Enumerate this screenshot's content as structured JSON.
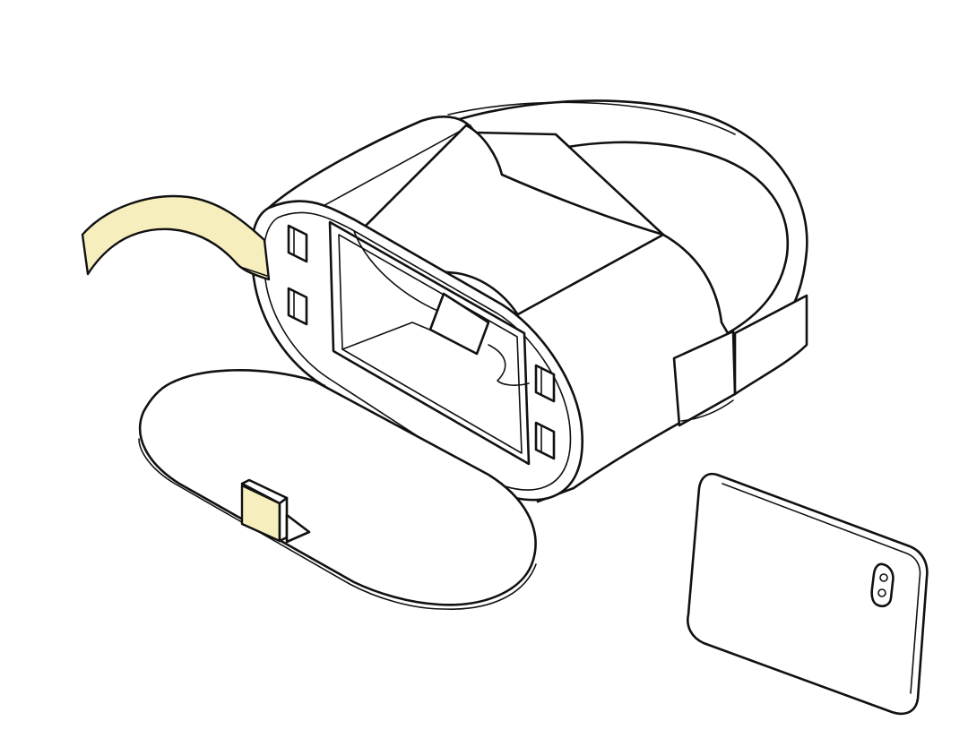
{
  "colors": {
    "background": "#ffffff",
    "outline": "#111111",
    "fill": "#ffffff",
    "tape": "#f6eebc"
  },
  "icons": [
    "vr-headset-icon",
    "head-strap-icon",
    "adhesive-tape-icon",
    "magnet-pad-icon",
    "front-cover-icon",
    "phone-stand-icon",
    "smartphone-icon",
    "camera-lens-icon"
  ]
}
